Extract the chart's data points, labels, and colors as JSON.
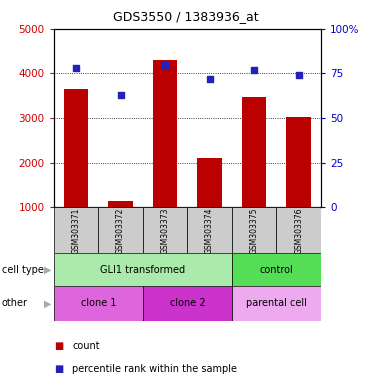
{
  "title": "GDS3550 / 1383936_at",
  "samples": [
    "GSM303371",
    "GSM303372",
    "GSM303373",
    "GSM303374",
    "GSM303375",
    "GSM303376"
  ],
  "counts": [
    3650,
    1150,
    4300,
    2100,
    3480,
    3020
  ],
  "percentiles": [
    78,
    63,
    80,
    72,
    77,
    74
  ],
  "ylim_left": [
    1000,
    5000
  ],
  "ylim_right": [
    0,
    100
  ],
  "yticks_left": [
    1000,
    2000,
    3000,
    4000,
    5000
  ],
  "yticks_right": [
    0,
    25,
    50,
    75,
    100
  ],
  "ytick_right_labels": [
    "0",
    "25",
    "50",
    "75",
    "100%"
  ],
  "bar_color": "#bb0000",
  "dot_color": "#2222bb",
  "cell_type_groups": [
    {
      "label": "GLI1 transformed",
      "start": 0,
      "end": 4,
      "color": "#aaeaaa"
    },
    {
      "label": "control",
      "start": 4,
      "end": 6,
      "color": "#55dd55"
    }
  ],
  "other_groups": [
    {
      "label": "clone 1",
      "start": 0,
      "end": 2,
      "color": "#dd66dd"
    },
    {
      "label": "clone 2",
      "start": 2,
      "end": 4,
      "color": "#cc33cc"
    },
    {
      "label": "parental cell",
      "start": 4,
      "end": 6,
      "color": "#eeaaee"
    }
  ],
  "sample_box_color": "#cccccc",
  "legend_count_color": "#bb0000",
  "legend_pct_color": "#2222bb",
  "bg_color": "#ffffff",
  "label_row1": "cell type",
  "label_row2": "other",
  "legend_count_text": "count",
  "legend_pct_text": "percentile rank within the sample",
  "tick_label_color_left": "#cc0000",
  "tick_label_color_right": "#0000cc"
}
